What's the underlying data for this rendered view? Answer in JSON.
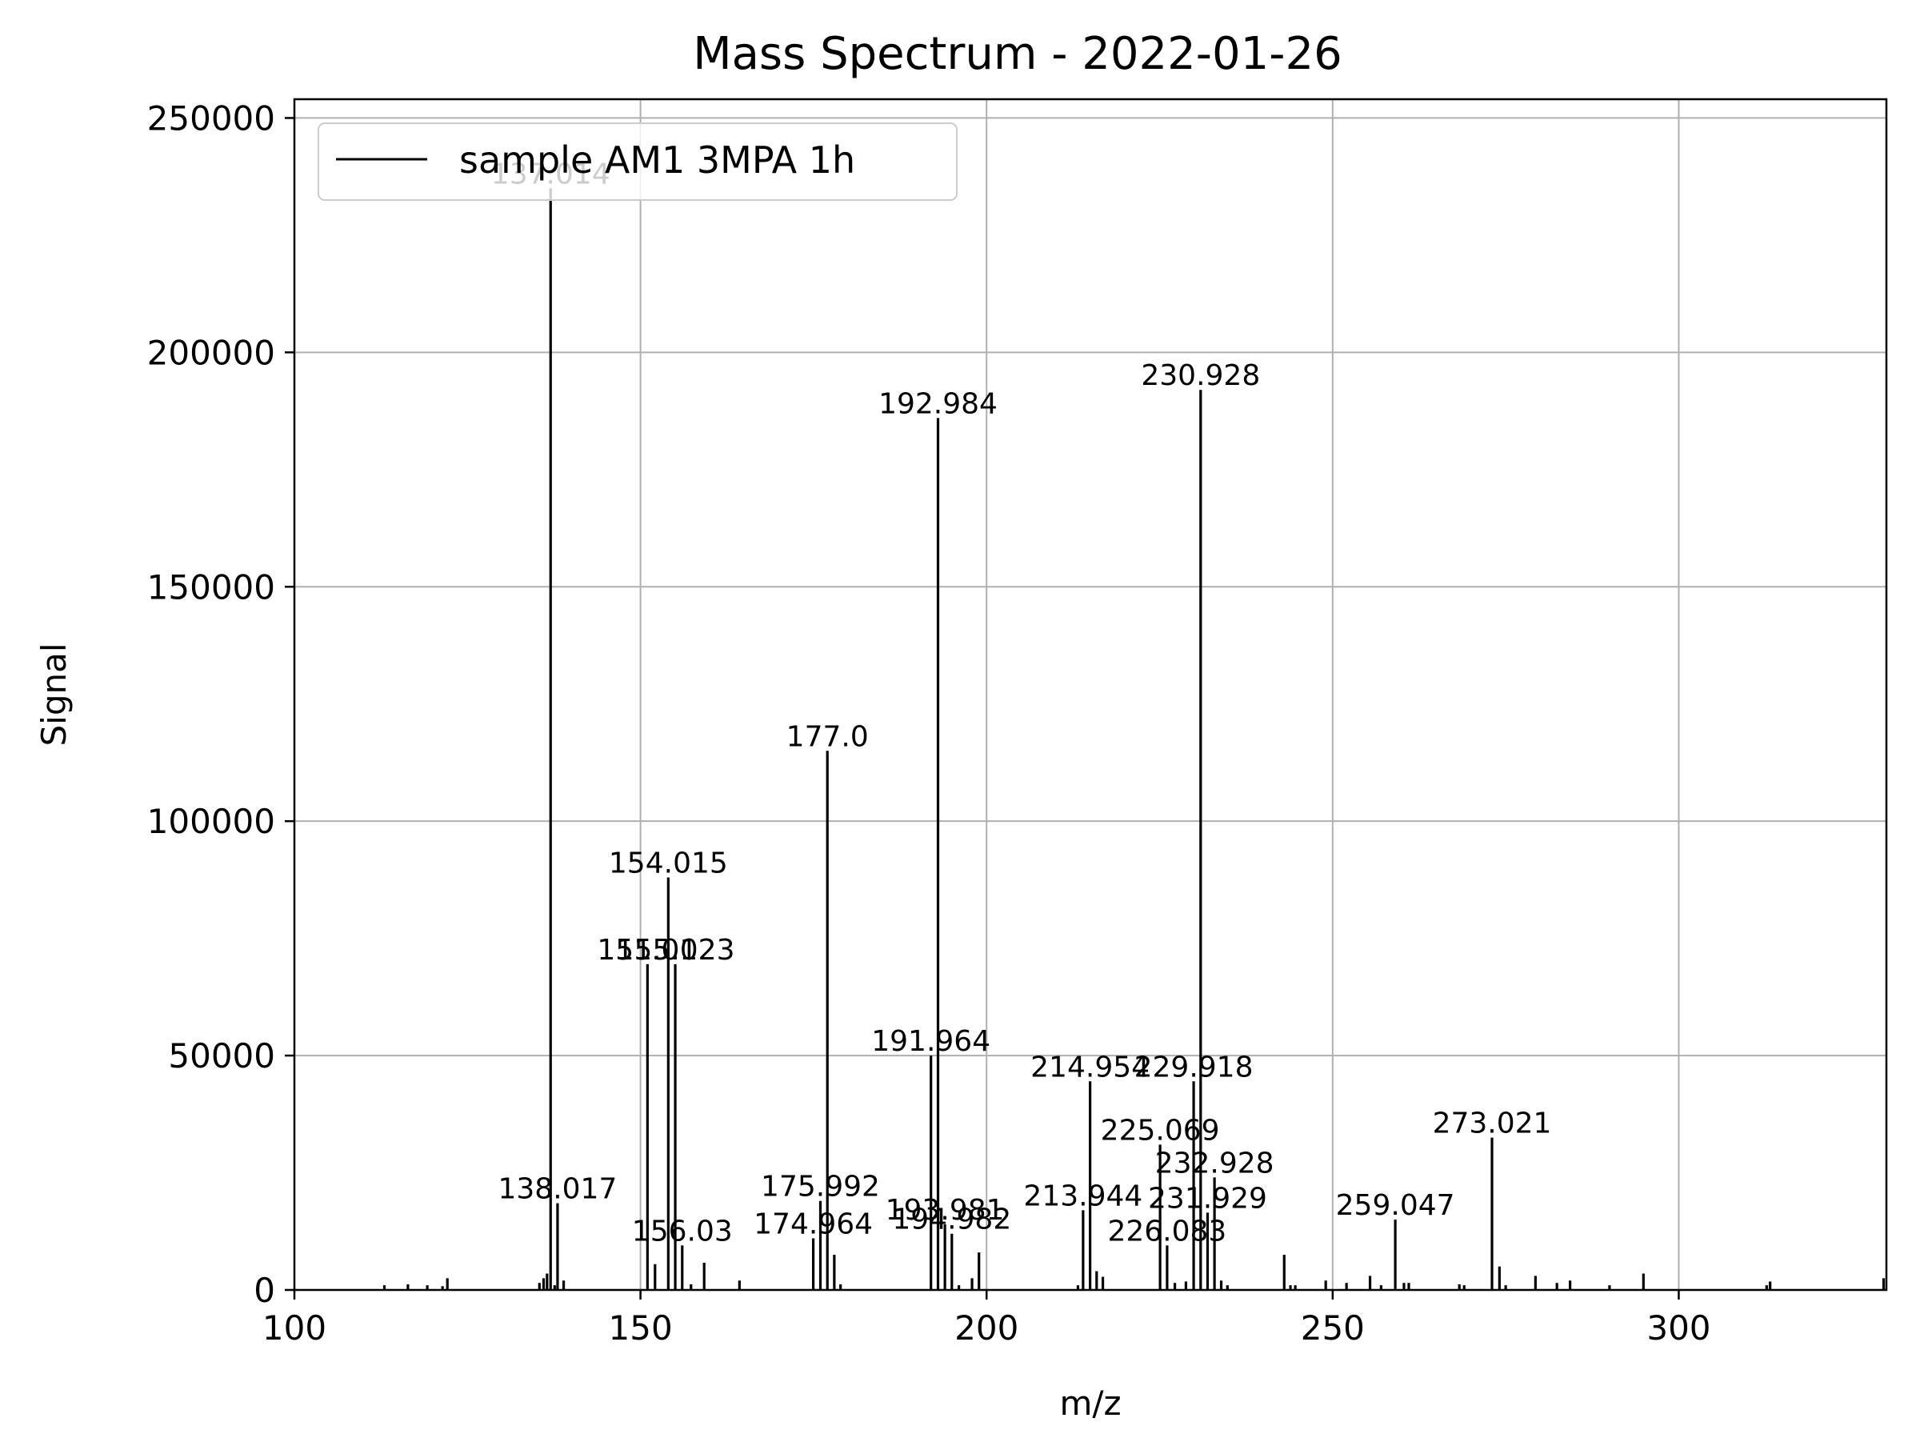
{
  "chart_data": {
    "type": "bar",
    "title": "Mass Spectrum - 2022-01-26",
    "xlabel": "m/z",
    "ylabel": "Signal",
    "xlim": [
      100,
      330
    ],
    "ylim": [
      0,
      254000
    ],
    "xticks": [
      100,
      150,
      200,
      250,
      300
    ],
    "yticks": [
      0,
      50000,
      100000,
      150000,
      200000,
      250000
    ],
    "grid": true,
    "legend_position": "top-left",
    "line_color": "#000000",
    "series": [
      {
        "name": "sample AM1 3MPA 1h",
        "peaks": [
          {
            "mz": 113.0,
            "signal": 1000
          },
          {
            "mz": 116.4,
            "signal": 1200
          },
          {
            "mz": 119.2,
            "signal": 1000
          },
          {
            "mz": 121.4,
            "signal": 800
          },
          {
            "mz": 122.1,
            "signal": 2500
          },
          {
            "mz": 135.4,
            "signal": 1500
          },
          {
            "mz": 136.0,
            "signal": 2500
          },
          {
            "mz": 136.5,
            "signal": 3500
          },
          {
            "mz": 137.014,
            "signal": 235000,
            "label": "137.014"
          },
          {
            "mz": 137.6,
            "signal": 1000
          },
          {
            "mz": 138.017,
            "signal": 18500,
            "label": "138.017"
          },
          {
            "mz": 138.9,
            "signal": 2000
          },
          {
            "mz": 151.01,
            "signal": 69500,
            "label": "151.01"
          },
          {
            "mz": 152.1,
            "signal": 5500
          },
          {
            "mz": 154.015,
            "signal": 88000,
            "label": "154.015"
          },
          {
            "mz": 155.023,
            "signal": 69500,
            "label": "155.023"
          },
          {
            "mz": 156.03,
            "signal": 9500,
            "label": "156.03"
          },
          {
            "mz": 157.3,
            "signal": 1200
          },
          {
            "mz": 159.2,
            "signal": 5800
          },
          {
            "mz": 164.3,
            "signal": 2000
          },
          {
            "mz": 174.964,
            "signal": 11000,
            "label": "174.964"
          },
          {
            "mz": 175.992,
            "signal": 19000,
            "label": "175.992"
          },
          {
            "mz": 177.0,
            "signal": 115000,
            "label": "177.0"
          },
          {
            "mz": 178.0,
            "signal": 7500
          },
          {
            "mz": 178.9,
            "signal": 1200
          },
          {
            "mz": 191.964,
            "signal": 50000,
            "label": "191.964"
          },
          {
            "mz": 192.984,
            "signal": 186000,
            "label": "192.984"
          },
          {
            "mz": 193.981,
            "signal": 14000,
            "label": "193.981"
          },
          {
            "mz": 194.982,
            "signal": 12000,
            "label": "194.982"
          },
          {
            "mz": 196.0,
            "signal": 1000
          },
          {
            "mz": 197.9,
            "signal": 2500
          },
          {
            "mz": 198.9,
            "signal": 8000
          },
          {
            "mz": 213.2,
            "signal": 1000
          },
          {
            "mz": 213.944,
            "signal": 17000,
            "label": "213.944"
          },
          {
            "mz": 214.954,
            "signal": 44500,
            "label": "214.954"
          },
          {
            "mz": 215.9,
            "signal": 4000
          },
          {
            "mz": 216.8,
            "signal": 2800
          },
          {
            "mz": 225.069,
            "signal": 31000,
            "label": "225.069"
          },
          {
            "mz": 226.083,
            "signal": 9500,
            "label": "226.083"
          },
          {
            "mz": 227.2,
            "signal": 1500
          },
          {
            "mz": 228.8,
            "signal": 1800
          },
          {
            "mz": 229.918,
            "signal": 44500,
            "label": "229.918"
          },
          {
            "mz": 230.928,
            "signal": 192000,
            "label": "230.928"
          },
          {
            "mz": 231.929,
            "signal": 16500,
            "label": "231.929"
          },
          {
            "mz": 232.928,
            "signal": 24000,
            "label": "232.928"
          },
          {
            "mz": 233.9,
            "signal": 2000
          },
          {
            "mz": 234.8,
            "signal": 1000
          },
          {
            "mz": 243.0,
            "signal": 7500
          },
          {
            "mz": 243.9,
            "signal": 1000
          },
          {
            "mz": 244.6,
            "signal": 1000
          },
          {
            "mz": 249.0,
            "signal": 2000
          },
          {
            "mz": 252.0,
            "signal": 1500
          },
          {
            "mz": 255.4,
            "signal": 3000
          },
          {
            "mz": 257.0,
            "signal": 1000
          },
          {
            "mz": 259.047,
            "signal": 15000,
            "label": "259.047"
          },
          {
            "mz": 260.3,
            "signal": 1500
          },
          {
            "mz": 261.0,
            "signal": 1500
          },
          {
            "mz": 268.3,
            "signal": 1200
          },
          {
            "mz": 269.0,
            "signal": 1000
          },
          {
            "mz": 273.021,
            "signal": 32500,
            "label": "273.021"
          },
          {
            "mz": 274.1,
            "signal": 5000
          },
          {
            "mz": 275.0,
            "signal": 1000
          },
          {
            "mz": 279.3,
            "signal": 3000
          },
          {
            "mz": 282.4,
            "signal": 1500
          },
          {
            "mz": 284.3,
            "signal": 2000
          },
          {
            "mz": 290.0,
            "signal": 1000
          },
          {
            "mz": 294.9,
            "signal": 3500
          },
          {
            "mz": 312.7,
            "signal": 1000
          },
          {
            "mz": 313.2,
            "signal": 1800
          },
          {
            "mz": 329.6,
            "signal": 2500
          }
        ]
      }
    ]
  }
}
